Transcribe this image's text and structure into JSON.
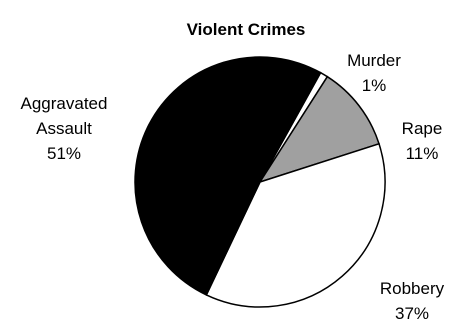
{
  "chart_data": {
    "type": "pie",
    "title": "Violent Crimes",
    "slices": [
      {
        "label_lines": [
          "Murder"
        ],
        "percent_text": "1%",
        "value": 1,
        "color": "#ffffff"
      },
      {
        "label_lines": [
          "Rape"
        ],
        "percent_text": "11%",
        "value": 11,
        "color": "#a0a0a0"
      },
      {
        "label_lines": [
          "Robbery"
        ],
        "percent_text": "37%",
        "value": 37,
        "color": "#ffffff"
      },
      {
        "label_lines": [
          "Aggravated",
          "Assault"
        ],
        "percent_text": "51%",
        "value": 51,
        "color": "#000000"
      }
    ],
    "legend": "none"
  }
}
